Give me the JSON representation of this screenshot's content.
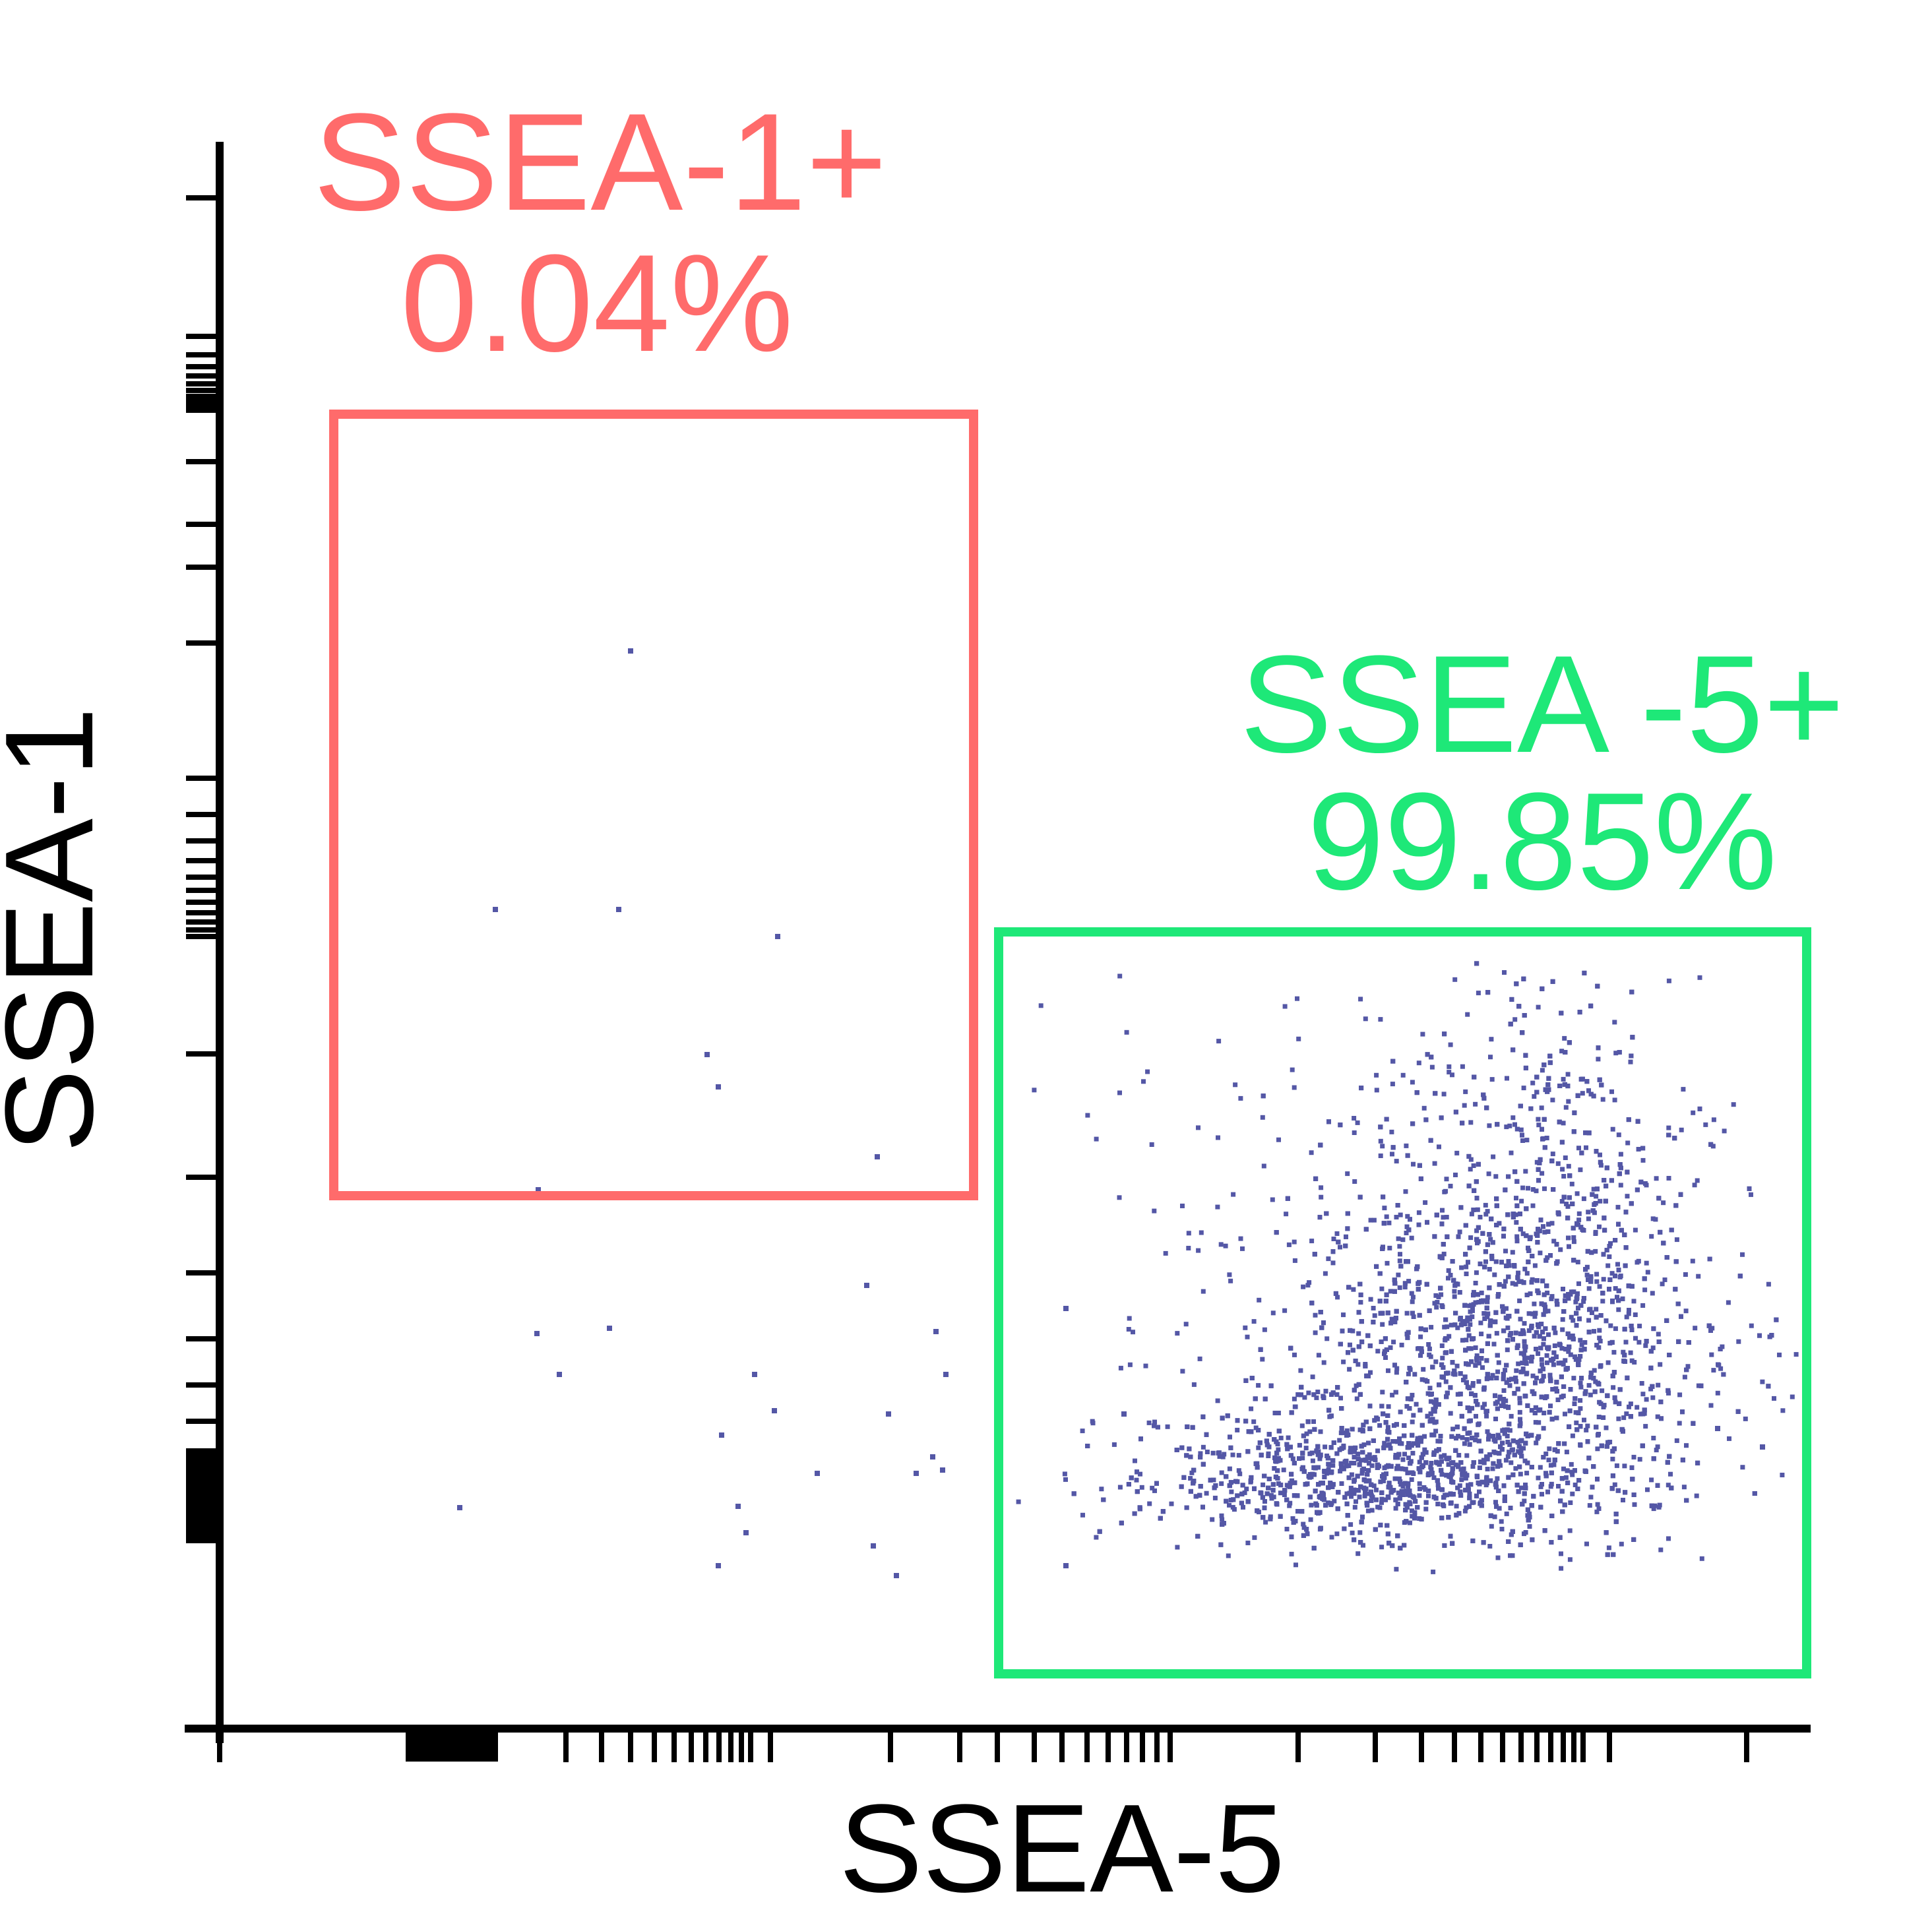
{
  "chart_data": {
    "type": "scatter",
    "xlabel": "SSEA-5",
    "ylabel": "SSEA-1",
    "xscale": "log",
    "yscale": "log",
    "grid": false,
    "tick_labels": "none",
    "colors": {
      "points": "#5457a6",
      "gate_ssea1": "#ff6b6b",
      "gate_ssea5": "#1ee878",
      "axis": "#000000"
    },
    "gates": [
      {
        "name": "SSEA-1+",
        "percent": "0.04%",
        "color": "#ff6b6b"
      },
      {
        "name": "SSEA -5+",
        "percent": "99.85%",
        "color": "#1ee878"
      }
    ],
    "population": {
      "description_cluster": "main SSEA-5 positive population",
      "center_rel": [
        0.83,
        0.18
      ]
    }
  }
}
